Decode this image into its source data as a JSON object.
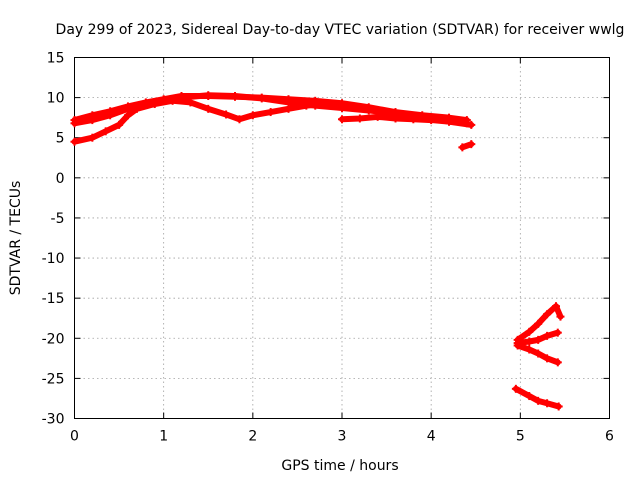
{
  "chart_data": {
    "type": "scatter",
    "title": "Day 299 of 2023, Sidereal Day-to-day VTEC variation (SDTVAR) for receiver wwlg",
    "xlabel": "GPS time / hours",
    "ylabel": "SDTVAR / TECUs",
    "xlim": [
      0,
      6
    ],
    "ylim": [
      -30,
      15
    ],
    "x_ticks": [
      0,
      1,
      2,
      3,
      4,
      5,
      6
    ],
    "y_ticks": [
      15,
      10,
      5,
      0,
      -5,
      -10,
      -15,
      -20,
      -25,
      -30
    ],
    "grid": true,
    "marker_color": "#ff0000",
    "series": [
      {
        "points": [
          [
            0.0,
            7.2
          ],
          [
            0.2,
            7.8
          ],
          [
            0.4,
            8.3
          ],
          [
            0.6,
            8.9
          ],
          [
            0.8,
            9.4
          ],
          [
            1.0,
            9.8
          ],
          [
            1.2,
            10.2
          ],
          [
            1.5,
            10.2
          ],
          [
            1.8,
            10.1
          ],
          [
            2.1,
            10.0
          ],
          [
            2.4,
            9.8
          ],
          [
            2.7,
            9.6
          ],
          [
            3.0,
            9.3
          ],
          [
            3.3,
            8.8
          ],
          [
            3.6,
            8.2
          ],
          [
            3.9,
            7.8
          ],
          [
            4.2,
            7.5
          ],
          [
            4.4,
            7.2
          ]
        ]
      },
      {
        "points": [
          [
            0.0,
            6.8
          ],
          [
            0.2,
            7.2
          ],
          [
            0.4,
            7.8
          ],
          [
            0.6,
            8.6
          ],
          [
            0.8,
            9.2
          ],
          [
            1.0,
            9.6
          ],
          [
            1.2,
            10.0
          ],
          [
            1.5,
            10.3
          ],
          [
            1.8,
            10.2
          ],
          [
            2.1,
            9.9
          ],
          [
            2.4,
            9.4
          ],
          [
            2.7,
            9.0
          ],
          [
            3.0,
            8.7
          ],
          [
            3.3,
            8.4
          ],
          [
            3.6,
            8.0
          ],
          [
            3.9,
            7.6
          ],
          [
            4.2,
            7.0
          ],
          [
            4.45,
            6.6
          ]
        ]
      },
      {
        "points": [
          [
            0.0,
            4.5
          ],
          [
            0.2,
            5.0
          ],
          [
            0.35,
            5.8
          ],
          [
            0.5,
            6.6
          ],
          [
            0.6,
            7.8
          ],
          [
            0.7,
            8.6
          ],
          [
            0.9,
            9.2
          ],
          [
            1.1,
            9.6
          ],
          [
            1.3,
            9.4
          ],
          [
            1.5,
            8.6
          ],
          [
            1.7,
            7.9
          ],
          [
            1.85,
            7.3
          ],
          [
            2.0,
            7.8
          ],
          [
            2.2,
            8.2
          ],
          [
            2.4,
            8.6
          ],
          [
            2.6,
            9.0
          ],
          [
            2.8,
            9.2
          ]
        ]
      },
      {
        "points": [
          [
            3.0,
            7.3
          ],
          [
            3.2,
            7.4
          ],
          [
            3.4,
            7.6
          ],
          [
            3.6,
            7.4
          ],
          [
            3.8,
            7.3
          ],
          [
            4.0,
            7.2
          ],
          [
            4.2,
            7.0
          ],
          [
            4.4,
            6.8
          ]
        ]
      },
      {
        "points": [
          [
            4.35,
            3.8
          ],
          [
            4.45,
            4.2
          ]
        ]
      },
      {
        "points": [
          [
            4.97,
            -20.2
          ],
          [
            5.1,
            -19.2
          ],
          [
            5.2,
            -18.2
          ],
          [
            5.3,
            -17.0
          ],
          [
            5.4,
            -16.0
          ],
          [
            5.45,
            -17.3
          ]
        ]
      },
      {
        "points": [
          [
            4.97,
            -20.6
          ],
          [
            5.1,
            -20.4
          ],
          [
            5.2,
            -20.2
          ],
          [
            5.3,
            -19.7
          ],
          [
            5.42,
            -19.3
          ]
        ]
      },
      {
        "points": [
          [
            4.97,
            -20.9
          ],
          [
            5.1,
            -21.4
          ],
          [
            5.2,
            -21.9
          ],
          [
            5.3,
            -22.5
          ],
          [
            5.42,
            -23.0
          ]
        ]
      },
      {
        "points": [
          [
            4.95,
            -26.3
          ],
          [
            5.1,
            -27.2
          ],
          [
            5.2,
            -27.8
          ],
          [
            5.3,
            -28.1
          ],
          [
            5.43,
            -28.5
          ]
        ]
      }
    ]
  }
}
